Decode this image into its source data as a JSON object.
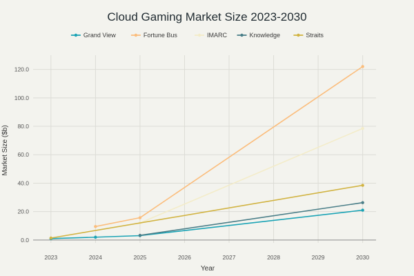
{
  "chart_data": {
    "type": "line",
    "title": "Cloud Gaming Market Size 2023-2030",
    "xlabel": "Year",
    "ylabel": "Market Size ($b)",
    "x_tick_labels": [
      "2023",
      "2024",
      "2025",
      "2026",
      "2027",
      "2028",
      "2029",
      "2030"
    ],
    "y_tick_labels": [
      "0.0",
      "20.0",
      "40.0",
      "60.0",
      "80.0",
      "100.0",
      "120.0"
    ],
    "xlim": [
      2022.6,
      2030.3
    ],
    "ylim": [
      -2,
      130
    ],
    "grid": true,
    "legend_position": "top-center",
    "series": [
      {
        "name": "Grand View",
        "color": "#1aa3b5",
        "points": [
          [
            2023,
            1.0
          ],
          [
            2024,
            2.0
          ],
          [
            2025,
            3.1
          ],
          [
            2030,
            21.0
          ]
        ]
      },
      {
        "name": "Fortune Bus",
        "color": "#fbbd7c",
        "points": [
          [
            2024,
            9.5
          ],
          [
            2025,
            15.7
          ],
          [
            2030,
            122.0
          ]
        ]
      },
      {
        "name": "IMARC",
        "color": "#f3ecc9",
        "points": [
          [
            2025,
            12.0
          ],
          [
            2030,
            78.5
          ]
        ]
      },
      {
        "name": "Knowledge",
        "color": "#4a7e88",
        "points": [
          [
            2025,
            3.3
          ],
          [
            2030,
            26.3
          ]
        ]
      },
      {
        "name": "Straits",
        "color": "#d1b341",
        "points": [
          [
            2023,
            1.4
          ],
          [
            2030,
            38.5
          ]
        ]
      }
    ]
  }
}
